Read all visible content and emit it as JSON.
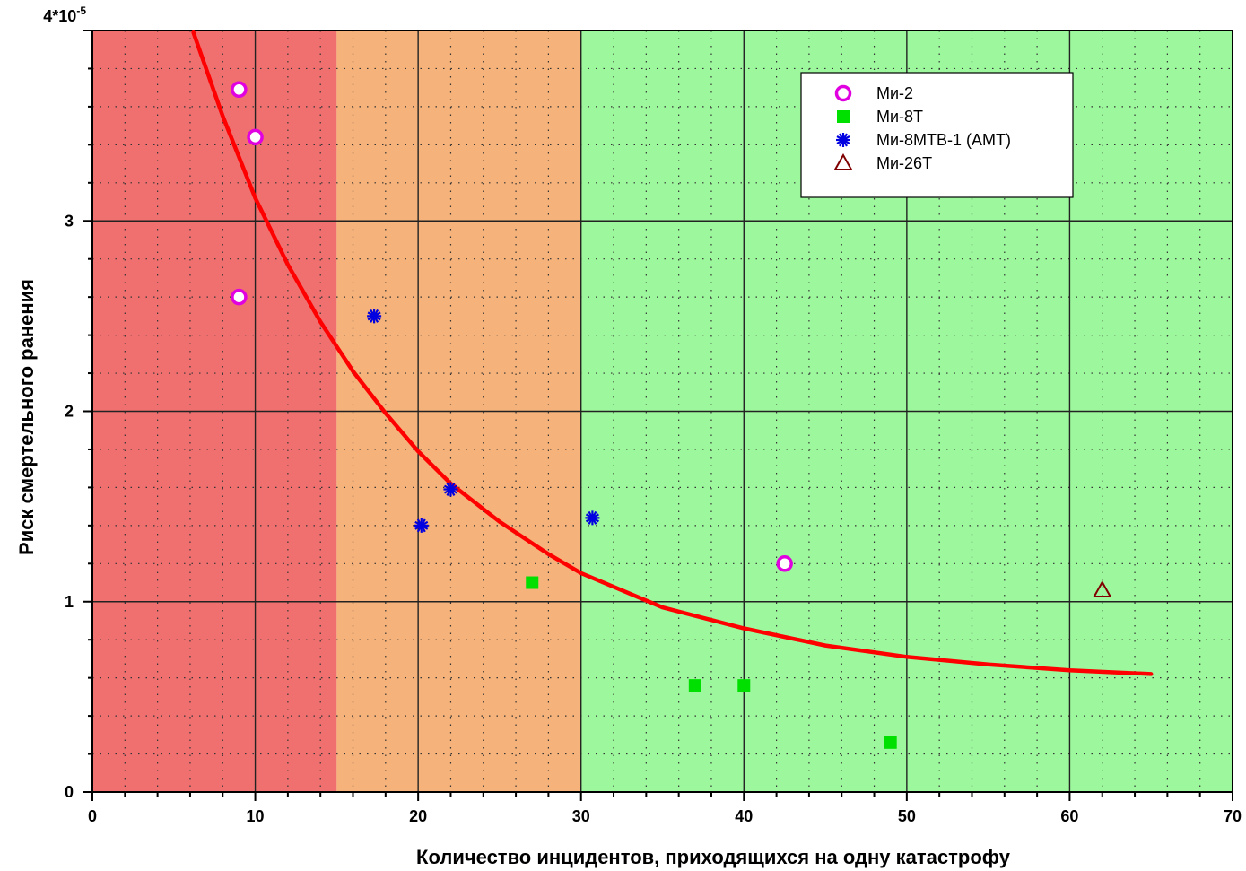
{
  "chart_data": {
    "type": "scatter",
    "xlabel": "Количество инцидентов, приходящихся на одну катастрофу",
    "ylabel": "Риск  смертельного  ранения",
    "xlim": [
      0,
      70
    ],
    "ylim": [
      0,
      4
    ],
    "x_ticks": [
      "0",
      "10",
      "20",
      "30",
      "40",
      "50",
      "60",
      "70"
    ],
    "y_ticks": [
      "0",
      "1",
      "2",
      "3"
    ],
    "y_top_label": "4*10",
    "y_top_exponent": "-5",
    "grid": true,
    "legend_position": "top-right",
    "zones": [
      {
        "from": 0,
        "to": 15,
        "color": "#f07070"
      },
      {
        "from": 15,
        "to": 30,
        "color": "#f5b27a"
      },
      {
        "from": 30,
        "to": 70,
        "color": "#9df79d"
      }
    ],
    "series": [
      {
        "name": "Ми-2",
        "marker": "circle",
        "color": "#e000e0",
        "points": [
          [
            9,
            3.69
          ],
          [
            10,
            3.44
          ],
          [
            9,
            2.6
          ],
          [
            42.5,
            1.2
          ]
        ]
      },
      {
        "name": "Ми-8Т",
        "marker": "square",
        "color": "#00e000",
        "points": [
          [
            27,
            1.1
          ],
          [
            37,
            0.56
          ],
          [
            40,
            0.56
          ],
          [
            49,
            0.26
          ]
        ]
      },
      {
        "name": "Ми-8МТВ-1 (АМТ)",
        "marker": "asterisk",
        "color": "#0000e0",
        "points": [
          [
            17.3,
            2.5
          ],
          [
            22,
            1.59
          ],
          [
            20.2,
            1.4
          ],
          [
            30.7,
            1.44
          ]
        ]
      },
      {
        "name": "Ми-26Т",
        "marker": "triangle",
        "color": "#800000",
        "points": [
          [
            62,
            1.06
          ]
        ]
      }
    ],
    "fit_curve": {
      "color": "#ff0000",
      "points": [
        [
          6.2,
          3.99
        ],
        [
          8,
          3.55
        ],
        [
          10,
          3.12
        ],
        [
          12,
          2.77
        ],
        [
          14,
          2.47
        ],
        [
          16,
          2.21
        ],
        [
          18,
          1.99
        ],
        [
          20,
          1.79
        ],
        [
          22,
          1.62
        ],
        [
          25,
          1.42
        ],
        [
          28,
          1.25
        ],
        [
          30,
          1.15
        ],
        [
          35,
          0.97
        ],
        [
          40,
          0.86
        ],
        [
          45,
          0.77
        ],
        [
          50,
          0.71
        ],
        [
          55,
          0.67
        ],
        [
          60,
          0.64
        ],
        [
          65,
          0.62
        ]
      ]
    }
  }
}
